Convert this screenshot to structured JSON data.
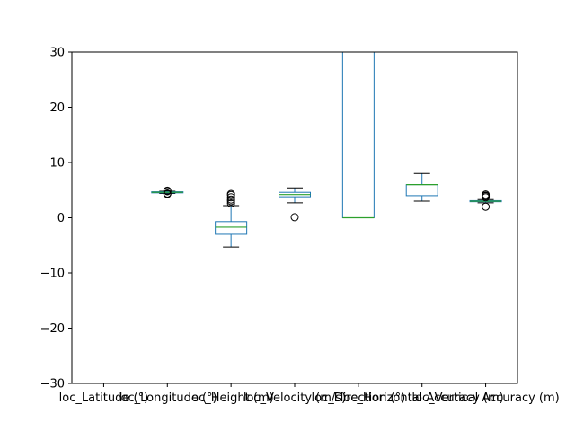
{
  "chart_data": {
    "type": "box",
    "title": "",
    "xlabel": "",
    "ylabel": "",
    "ylim": [
      -30,
      30
    ],
    "yticks": [
      -30,
      -20,
      -10,
      0,
      10,
      20,
      30
    ],
    "ytick_labels": [
      "−30",
      "−20",
      "−10",
      "0",
      "10",
      "20",
      "30"
    ],
    "grid": false,
    "colors": {
      "box": "#1f77b4",
      "median": "#2ca02c",
      "axis": "#000000"
    },
    "categories": [
      "loc_Latitude (°)",
      "loc_Longitude (°)",
      "loc_Height (m)",
      "loc_Velocity (m/s)",
      "loc_Direction (°)",
      "loc_Horizontal Accuracy (m)",
      "loc_Vertical Accuracy (m)"
    ],
    "boxes": [
      {
        "q1": null,
        "median": null,
        "q3": null,
        "whisker_low": null,
        "whisker_high": null,
        "outliers": []
      },
      {
        "q1": 4.5,
        "median": 4.6,
        "q3": 4.7,
        "whisker_low": 4.4,
        "whisker_high": 4.8,
        "outliers": [
          4.3,
          4.4,
          4.8,
          4.9
        ]
      },
      {
        "q1": -3.0,
        "median": -1.7,
        "q3": -0.7,
        "whisker_low": -5.3,
        "whisker_high": 2.2,
        "outliers": [
          2.6,
          3.0,
          3.3,
          3.7,
          4.1,
          4.3
        ]
      },
      {
        "q1": 3.8,
        "median": 4.2,
        "q3": 4.6,
        "whisker_low": 2.7,
        "whisker_high": 5.4,
        "outliers": [
          0.1
        ]
      },
      {
        "q1": 0,
        "median": 0,
        "q3": 30,
        "whisker_low": 0,
        "whisker_high": 30,
        "outliers": []
      },
      {
        "q1": 4.0,
        "median": 6.0,
        "q3": 6.0,
        "whisker_low": 3.0,
        "whisker_high": 8.0,
        "outliers": []
      },
      {
        "q1": 2.9,
        "median": 3.0,
        "q3": 3.1,
        "whisker_low": 2.7,
        "whisker_high": 3.3,
        "outliers": [
          2.0,
          3.7,
          3.9,
          4.0,
          4.2
        ]
      }
    ]
  }
}
